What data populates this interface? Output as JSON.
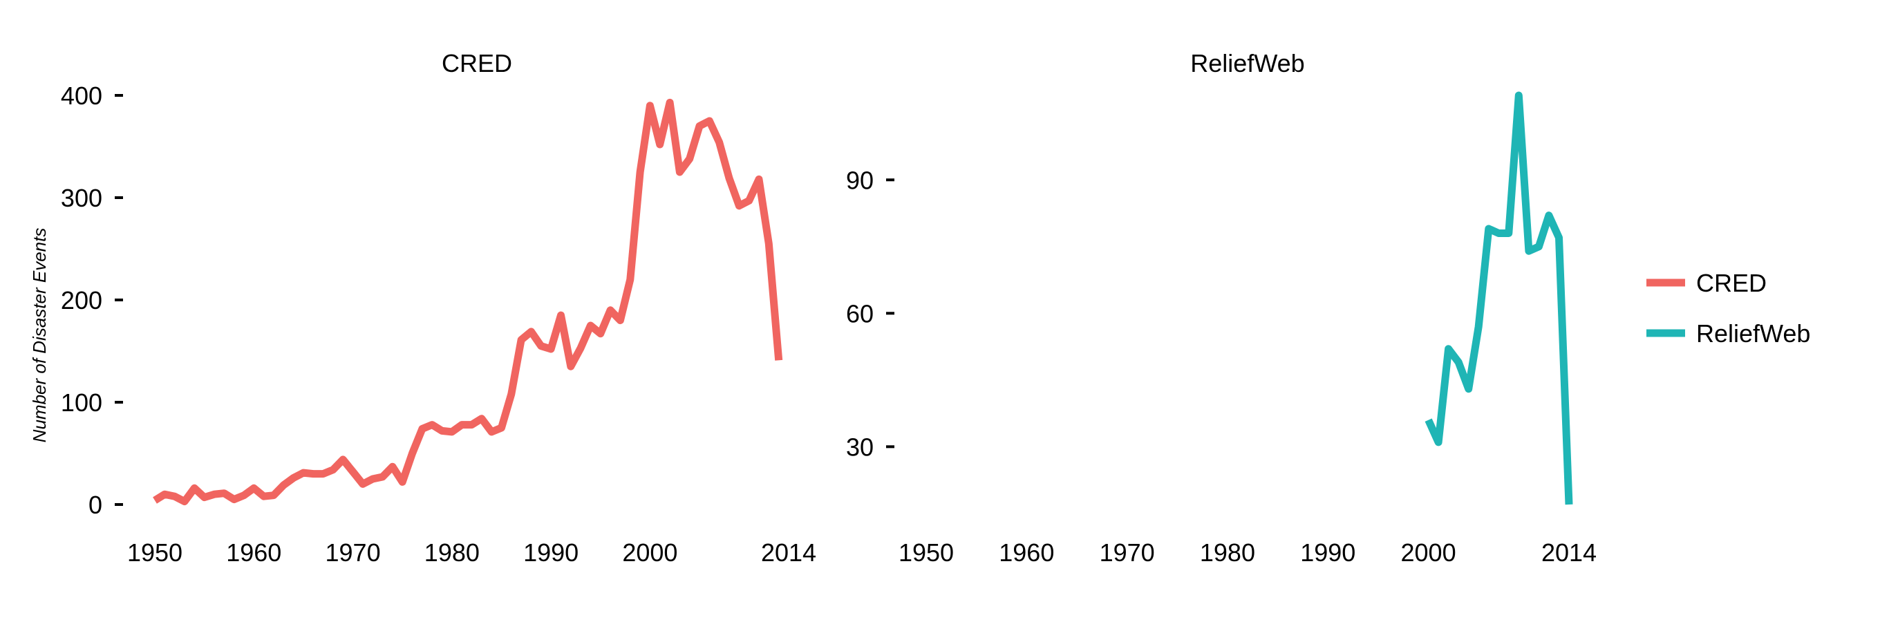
{
  "chart_data": {
    "type": "line",
    "ylabel": "Number of Disaster Events",
    "grid": false,
    "legend_position": "right",
    "colors": {
      "CRED": "#F06560",
      "ReliefWeb": "#1FB5B5"
    },
    "legend": [
      {
        "name": "CRED",
        "color": "#F06560"
      },
      {
        "name": "ReliefWeb",
        "color": "#1FB5B5"
      }
    ],
    "x_ticks": [
      "1950",
      "1960",
      "1970",
      "1980",
      "1990",
      "2000",
      "2014"
    ],
    "panels": [
      {
        "title": "CRED",
        "series_name": "CRED",
        "xlim": [
          1950,
          2014
        ],
        "ylim": [
          0,
          400
        ],
        "y_ticks": [
          "0",
          "100",
          "200",
          "300",
          "400"
        ],
        "x": [
          1950,
          1951,
          1952,
          1953,
          1954,
          1955,
          1956,
          1957,
          1958,
          1959,
          1960,
          1961,
          1962,
          1963,
          1964,
          1965,
          1966,
          1967,
          1968,
          1969,
          1970,
          1971,
          1972,
          1973,
          1974,
          1975,
          1976,
          1977,
          1978,
          1979,
          1980,
          1981,
          1982,
          1983,
          1984,
          1985,
          1986,
          1987,
          1988,
          1989,
          1990,
          1991,
          1992,
          1993,
          1994,
          1995,
          1996,
          1997,
          1998,
          1999,
          2000,
          2001,
          2002,
          2003,
          2004,
          2005,
          2006,
          2007,
          2008,
          2009,
          2010,
          2011,
          2012,
          2013
        ],
        "y": [
          4,
          10,
          8,
          3,
          16,
          7,
          10,
          11,
          5,
          9,
          16,
          8,
          9,
          19,
          26,
          31,
          30,
          30,
          34,
          44,
          32,
          20,
          25,
          27,
          37,
          22,
          50,
          74,
          78,
          72,
          71,
          78,
          78,
          84,
          71,
          75,
          108,
          161,
          169,
          155,
          152,
          185,
          135,
          153,
          175,
          167,
          190,
          180,
          220,
          325,
          390,
          352,
          393,
          325,
          338,
          370,
          375,
          354,
          319,
          292,
          297,
          318,
          255,
          141
        ]
      },
      {
        "title": "ReliefWeb",
        "series_name": "ReliefWeb",
        "xlim": [
          1950,
          2014
        ],
        "ylim": [
          17,
          109
        ],
        "y_ticks": [
          "30",
          "60",
          "90"
        ],
        "x": [
          2000,
          2001,
          2002,
          2003,
          2004,
          2005,
          2006,
          2007,
          2008,
          2009,
          2010,
          2011,
          2012,
          2013,
          2014
        ],
        "y": [
          36,
          31,
          52,
          49,
          43,
          57,
          79,
          78,
          78,
          109,
          74,
          75,
          82,
          77,
          17
        ]
      }
    ]
  }
}
